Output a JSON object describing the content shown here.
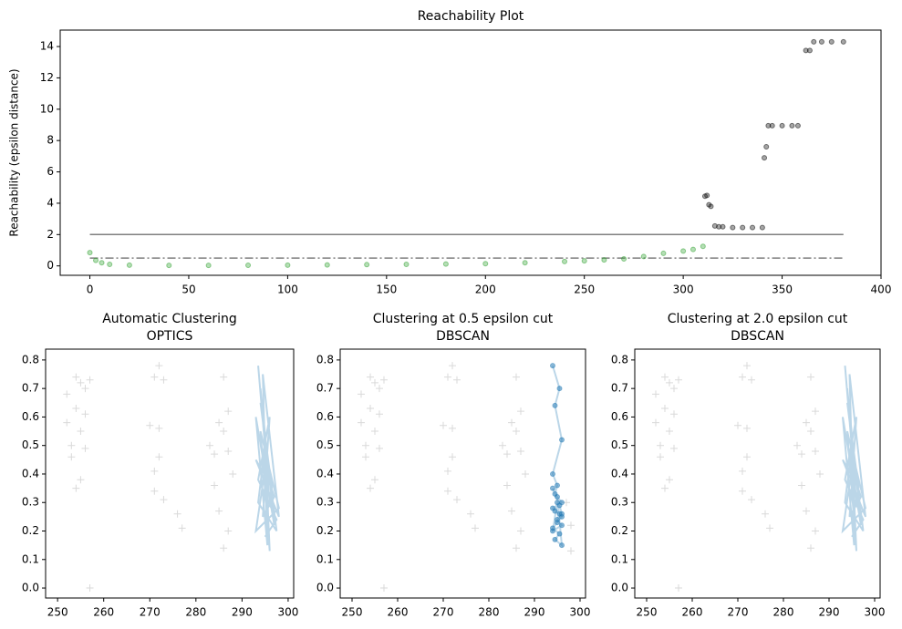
{
  "chart_data": [
    {
      "type": "scatter",
      "title": "Reachability Plot",
      "y_label": "Reachability (epsilon distance)",
      "xlim": [
        -15,
        400
      ],
      "ylim": [
        -0.6,
        15.05
      ],
      "xticks": [
        0,
        50,
        100,
        150,
        200,
        250,
        300,
        350,
        400
      ],
      "yticks": [
        0,
        2,
        4,
        6,
        8,
        10,
        12,
        14
      ],
      "series": [
        {
          "color": "#2ca02c",
          "marker": "dot",
          "x": [
            0,
            3,
            6,
            10,
            20,
            40,
            60,
            80,
            100,
            120,
            140,
            160,
            180,
            200,
            220,
            240,
            250,
            260,
            270,
            280,
            290,
            300,
            305,
            310
          ],
          "values": [
            0.85,
            0.35,
            0.2,
            0.1,
            0.05,
            0.03,
            0.03,
            0.04,
            0.05,
            0.06,
            0.08,
            0.1,
            0.12,
            0.14,
            0.2,
            0.28,
            0.32,
            0.38,
            0.45,
            0.6,
            0.8,
            0.95,
            1.05,
            1.25
          ]
        },
        {
          "color": "#000000",
          "marker": "dot",
          "x": [
            311,
            312,
            313,
            314,
            316,
            318,
            320,
            325,
            330,
            335,
            340,
            341,
            342,
            343,
            345,
            350,
            355,
            358,
            362,
            364,
            366,
            370,
            375,
            381
          ],
          "values": [
            4.45,
            4.5,
            3.9,
            3.8,
            2.55,
            2.5,
            2.5,
            2.45,
            2.45,
            2.45,
            2.45,
            6.9,
            7.6,
            8.95,
            8.95,
            8.95,
            8.95,
            8.95,
            13.75,
            13.75,
            14.3,
            14.3,
            14.3,
            14.3
          ]
        }
      ],
      "hlines": [
        {
          "y": 2,
          "xmin": 0,
          "xmax": 381,
          "style": "solid"
        },
        {
          "y": 0.5,
          "xmin": 0,
          "xmax": 381,
          "style": "dashdot"
        }
      ]
    },
    {
      "type": "scatter",
      "title": "Automatic Clustering",
      "subtitle": "OPTICS",
      "xlim": [
        247.4,
        301.2
      ],
      "ylim": [
        -0.035,
        0.838
      ],
      "xticks": [
        250,
        260,
        270,
        280,
        290,
        300
      ],
      "yticks": [
        {
          "value": 0,
          "label": "0.0"
        },
        0.1,
        0.2,
        0.3,
        0.4,
        0.5,
        0.6,
        0.7,
        0.8
      ],
      "series": [
        {
          "color": "#000000",
          "marker": "plus",
          "x": [
            252,
            252,
            253,
            253,
            254,
            254,
            254,
            255,
            255,
            255,
            256,
            256,
            256,
            257,
            257,
            270,
            271,
            271,
            271,
            272,
            272,
            272,
            273,
            273,
            276,
            277,
            283,
            284,
            284,
            285,
            285,
            286,
            286,
            286,
            287,
            287,
            287,
            288
          ],
          "values": [
            0.68,
            0.58,
            0.5,
            0.46,
            0.74,
            0.63,
            0.35,
            0.72,
            0.55,
            0.38,
            0.7,
            0.61,
            0.49,
            0.73,
            0,
            0.57,
            0.74,
            0.41,
            0.34,
            0.78,
            0.46,
            0.56,
            0.73,
            0.31,
            0.26,
            0.21,
            0.5,
            0.47,
            0.36,
            0.58,
            0.27,
            0.74,
            0.55,
            0.14,
            0.62,
            0.48,
            0.2,
            0.4
          ]
        },
        {
          "color": "#1f77b4",
          "marker": "line",
          "x": [
            293.5,
            296,
            294,
            297,
            293,
            295.5,
            294.5,
            298,
            293,
            296.5,
            294,
            297.5,
            293.5,
            295,
            296,
            294,
            298,
            293,
            295,
            297,
            294.5,
            296,
            293.5,
            297.5,
            295
          ],
          "values": [
            0.78,
            0.3,
            0.7,
            0.22,
            0.6,
            0.15,
            0.75,
            0.25,
            0.45,
            0.35,
            0.65,
            0.2,
            0.3,
            0.5,
            0.13,
            0.55,
            0.28,
            0.2,
            0.42,
            0.32,
            0.25,
            0.6,
            0.38,
            0.24,
            0.18
          ]
        }
      ]
    },
    {
      "type": "scatter",
      "title": "Clustering at 0.5 epsilon cut",
      "subtitle": "DBSCAN",
      "xlim": [
        247.4,
        301.2
      ],
      "ylim": [
        -0.035,
        0.838
      ],
      "xticks": [
        250,
        260,
        270,
        280,
        290,
        300
      ],
      "yticks": [
        {
          "value": 0,
          "label": "0.0"
        },
        0.1,
        0.2,
        0.3,
        0.4,
        0.5,
        0.6,
        0.7,
        0.8
      ],
      "series": [
        {
          "color": "#000000",
          "marker": "plus",
          "x": [
            252,
            252,
            253,
            253,
            254,
            254,
            254,
            255,
            255,
            255,
            256,
            256,
            256,
            257,
            257,
            270,
            271,
            271,
            271,
            272,
            272,
            272,
            273,
            273,
            276,
            277,
            283,
            284,
            284,
            285,
            285,
            286,
            286,
            286,
            287,
            287,
            287,
            288,
            297,
            298,
            298
          ],
          "values": [
            0.68,
            0.58,
            0.5,
            0.46,
            0.74,
            0.63,
            0.35,
            0.72,
            0.55,
            0.38,
            0.7,
            0.61,
            0.49,
            0.73,
            0,
            0.57,
            0.74,
            0.41,
            0.34,
            0.78,
            0.46,
            0.56,
            0.73,
            0.31,
            0.26,
            0.21,
            0.5,
            0.47,
            0.36,
            0.58,
            0.27,
            0.74,
            0.55,
            0.14,
            0.62,
            0.48,
            0.2,
            0.4,
            0.3,
            0.22,
            0.13
          ]
        },
        {
          "color": "#1f77b4",
          "marker": "line-dot",
          "x": [
            294,
            295.5,
            294.5,
            296,
            294,
            295,
            294.5,
            296,
            294,
            295.5,
            295,
            296,
            294,
            295,
            294.5,
            296,
            295,
            294,
            295.5,
            294.5,
            296,
            295,
            294,
            295.5,
            296
          ],
          "values": [
            0.78,
            0.7,
            0.64,
            0.52,
            0.4,
            0.36,
            0.33,
            0.3,
            0.28,
            0.26,
            0.24,
            0.22,
            0.2,
            0.3,
            0.27,
            0.25,
            0.23,
            0.21,
            0.19,
            0.17,
            0.15,
            0.32,
            0.35,
            0.29,
            0.26
          ]
        }
      ]
    },
    {
      "type": "scatter",
      "title": "Clustering at 2.0 epsilon cut",
      "subtitle": "DBSCAN",
      "xlim": [
        247.4,
        301.2
      ],
      "ylim": [
        -0.035,
        0.838
      ],
      "xticks": [
        250,
        260,
        270,
        280,
        290,
        300
      ],
      "yticks": [
        {
          "value": 0,
          "label": "0.0"
        },
        0.1,
        0.2,
        0.3,
        0.4,
        0.5,
        0.6,
        0.7,
        0.8
      ],
      "series": [
        {
          "color": "#000000",
          "marker": "plus",
          "x": [
            252,
            252,
            253,
            253,
            254,
            254,
            254,
            255,
            255,
            255,
            256,
            256,
            256,
            257,
            257,
            270,
            271,
            271,
            271,
            272,
            272,
            272,
            273,
            273,
            276,
            277,
            283,
            284,
            284,
            285,
            285,
            286,
            286,
            286,
            287,
            287,
            287,
            288
          ],
          "values": [
            0.68,
            0.58,
            0.5,
            0.46,
            0.74,
            0.63,
            0.35,
            0.72,
            0.55,
            0.38,
            0.7,
            0.61,
            0.49,
            0.73,
            0,
            0.57,
            0.74,
            0.41,
            0.34,
            0.78,
            0.46,
            0.56,
            0.73,
            0.31,
            0.26,
            0.21,
            0.5,
            0.47,
            0.36,
            0.58,
            0.27,
            0.74,
            0.55,
            0.14,
            0.62,
            0.48,
            0.2,
            0.4
          ]
        },
        {
          "color": "#1f77b4",
          "marker": "line",
          "x": [
            293.5,
            296,
            294,
            297,
            293,
            295.5,
            294.5,
            298,
            293,
            296.5,
            294,
            297.5,
            293.5,
            295,
            296,
            294,
            298,
            293,
            295,
            297,
            294.5,
            296,
            293.5,
            297.5,
            295
          ],
          "values": [
            0.78,
            0.3,
            0.7,
            0.22,
            0.6,
            0.15,
            0.75,
            0.25,
            0.45,
            0.35,
            0.65,
            0.2,
            0.3,
            0.5,
            0.13,
            0.55,
            0.28,
            0.2,
            0.42,
            0.32,
            0.25,
            0.6,
            0.38,
            0.24,
            0.18
          ]
        }
      ]
    }
  ]
}
